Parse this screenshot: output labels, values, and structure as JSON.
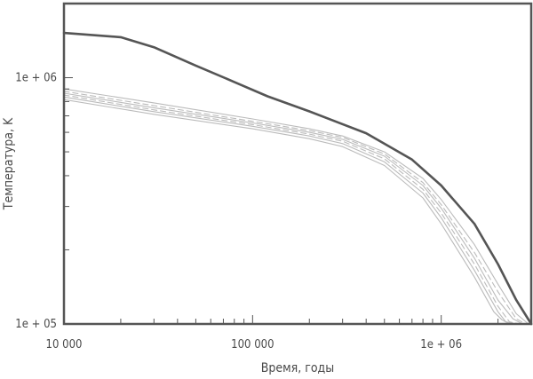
{
  "chart_data": {
    "type": "line",
    "title": "",
    "xlabel": "Время, годы",
    "ylabel": "Температура, K",
    "x_scale": "log",
    "y_scale": "log",
    "xlim": [
      10000,
      3000000
    ],
    "ylim": [
      100000,
      2000000
    ],
    "grid": false,
    "x_ticks": [
      {
        "value": 10000,
        "label": "10 000"
      },
      {
        "value": 100000,
        "label": "100 000"
      },
      {
        "value": 1000000,
        "label": "1e + 06"
      }
    ],
    "y_ticks": [
      {
        "value": 100000,
        "label": "1e + 05"
      },
      {
        "value": 1000000,
        "label": "1e + 06"
      }
    ],
    "colors": {
      "primary": "#555555",
      "secondary": "#bbbbbb",
      "frame": "#555555"
    },
    "series": [
      {
        "style": "solid-bold",
        "color": "#555555",
        "x": [
          10000,
          20000,
          30000,
          50000,
          80000,
          120000,
          200000,
          400000,
          700000,
          1000000,
          1500000,
          2000000,
          2500000,
          3000000
        ],
        "y": [
          1520000,
          1460000,
          1330000,
          1120000,
          960000,
          840000,
          730000,
          595000,
          465000,
          365000,
          255000,
          175000,
          125000,
          100000
        ]
      },
      {
        "style": "solid",
        "color": "#bbbbbb",
        "x": [
          10000,
          30000,
          100000,
          200000,
          300000,
          500000,
          800000,
          1000000,
          1500000,
          2000000,
          2500000,
          2900000
        ],
        "y": [
          900000,
          790000,
          680000,
          620000,
          580000,
          500000,
          390000,
          320000,
          210000,
          145000,
          110000,
          100000
        ]
      },
      {
        "style": "dashed",
        "color": "#bbbbbb",
        "x": [
          10000,
          30000,
          100000,
          200000,
          300000,
          500000,
          800000,
          1000000,
          1500000,
          2000000,
          2500000,
          2800000
        ],
        "y": [
          880000,
          770000,
          665000,
          610000,
          572000,
          490000,
          375000,
          305000,
          195000,
          135000,
          105000,
          100000
        ]
      },
      {
        "style": "solid",
        "color": "#bbbbbb",
        "x": [
          10000,
          30000,
          100000,
          200000,
          300000,
          500000,
          800000,
          1000000,
          1500000,
          2000000,
          2400000,
          2700000
        ],
        "y": [
          865000,
          755000,
          655000,
          600000,
          562000,
          480000,
          365000,
          295000,
          185000,
          125000,
          105000,
          100000
        ]
      },
      {
        "style": "dashed",
        "color": "#bbbbbb",
        "x": [
          10000,
          30000,
          100000,
          200000,
          300000,
          500000,
          800000,
          1000000,
          1500000,
          2000000,
          2300000,
          2600000
        ],
        "y": [
          850000,
          740000,
          645000,
          590000,
          552000,
          468000,
          352000,
          282000,
          175000,
          118000,
          102000,
          100000
        ]
      },
      {
        "style": "solid",
        "color": "#bbbbbb",
        "x": [
          10000,
          30000,
          100000,
          200000,
          300000,
          500000,
          800000,
          1000000,
          1500000,
          2000000,
          2200000,
          2500000
        ],
        "y": [
          835000,
          728000,
          635000,
          580000,
          540000,
          455000,
          340000,
          270000,
          165000,
          112000,
          102000,
          100000
        ]
      },
      {
        "style": "solid",
        "color": "#bbbbbb",
        "x": [
          10000,
          30000,
          100000,
          200000,
          300000,
          500000,
          800000,
          1000000,
          1500000,
          1900000,
          2100000,
          2300000
        ],
        "y": [
          815000,
          710000,
          620000,
          565000,
          525000,
          440000,
          325000,
          255000,
          155000,
          112000,
          104000,
          100000
        ]
      }
    ]
  }
}
